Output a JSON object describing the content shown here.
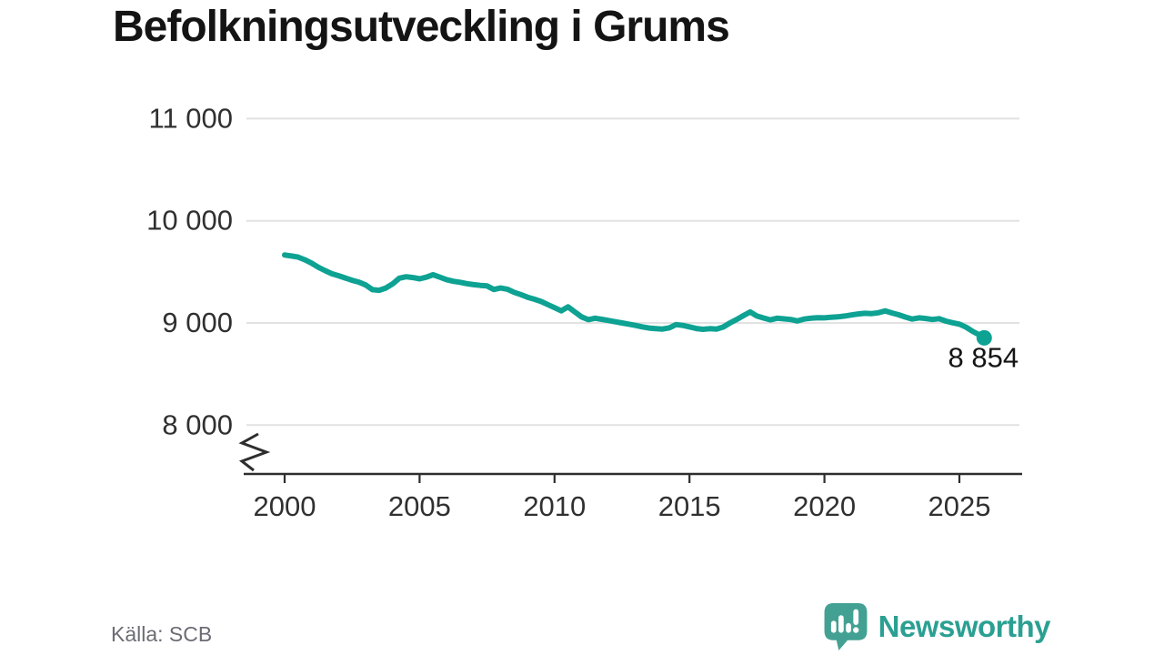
{
  "title": "Befolkningsutveckling i Grums",
  "source": {
    "text": "Källa: SCB"
  },
  "branding": {
    "name": "Newsworthy",
    "icon": "bar-chart-speech-bubble-icon"
  },
  "colors": {
    "line": "#0ea293",
    "grid": "#e2e2e2",
    "axis": "#2e2e2e",
    "tick_text": "#303030",
    "title_text": "#141414",
    "source_text": "#6c6c75",
    "brand": "#2ba092",
    "brand_icon": "#43a193"
  },
  "chart_data": {
    "type": "line",
    "title": "Befolkningsutveckling i Grums",
    "xlabel": "",
    "ylabel": "",
    "grid": "horizontal",
    "legend": "none",
    "y_axis_break": true,
    "xlim": [
      1998.55,
      2027.3
    ],
    "ylim": [
      8000,
      11000
    ],
    "x_ticks": [
      {
        "value": 2000,
        "label": "2000"
      },
      {
        "value": 2005,
        "label": "2005"
      },
      {
        "value": 2010,
        "label": "2010"
      },
      {
        "value": 2015,
        "label": "2015"
      },
      {
        "value": 2020,
        "label": "2020"
      },
      {
        "value": 2025,
        "label": "2025"
      }
    ],
    "y_ticks": [
      {
        "value": 8000,
        "label": "8 000"
      },
      {
        "value": 9000,
        "label": "9 000"
      },
      {
        "value": 10000,
        "label": "10 000"
      },
      {
        "value": 11000,
        "label": "11 000"
      }
    ],
    "end_point": {
      "x": 2025.92,
      "value": 8854,
      "label": "8 854"
    },
    "points": [
      [
        2000,
        9665
      ],
      [
        2000.25,
        9655
      ],
      [
        2000.5,
        9645
      ],
      [
        2000.75,
        9618
      ],
      [
        2001,
        9585
      ],
      [
        2001.25,
        9545
      ],
      [
        2001.5,
        9512
      ],
      [
        2001.75,
        9482
      ],
      [
        2002,
        9462
      ],
      [
        2002.25,
        9440
      ],
      [
        2002.5,
        9418
      ],
      [
        2002.75,
        9400
      ],
      [
        2003,
        9372
      ],
      [
        2003.25,
        9326
      ],
      [
        2003.5,
        9320
      ],
      [
        2003.75,
        9342
      ],
      [
        2004,
        9382
      ],
      [
        2004.25,
        9438
      ],
      [
        2004.5,
        9452
      ],
      [
        2004.75,
        9444
      ],
      [
        2005,
        9432
      ],
      [
        2005.25,
        9448
      ],
      [
        2005.5,
        9472
      ],
      [
        2005.75,
        9448
      ],
      [
        2006,
        9424
      ],
      [
        2006.25,
        9408
      ],
      [
        2006.5,
        9398
      ],
      [
        2006.75,
        9385
      ],
      [
        2007,
        9375
      ],
      [
        2007.25,
        9368
      ],
      [
        2007.5,
        9362
      ],
      [
        2007.75,
        9328
      ],
      [
        2008,
        9342
      ],
      [
        2008.25,
        9330
      ],
      [
        2008.5,
        9300
      ],
      [
        2008.75,
        9278
      ],
      [
        2009,
        9252
      ],
      [
        2009.25,
        9232
      ],
      [
        2009.5,
        9210
      ],
      [
        2009.75,
        9180
      ],
      [
        2010,
        9150
      ],
      [
        2010.25,
        9118
      ],
      [
        2010.5,
        9158
      ],
      [
        2010.75,
        9108
      ],
      [
        2011,
        9060
      ],
      [
        2011.25,
        9032
      ],
      [
        2011.5,
        9046
      ],
      [
        2011.75,
        9036
      ],
      [
        2012,
        9024
      ],
      [
        2012.25,
        9012
      ],
      [
        2012.5,
        9000
      ],
      [
        2012.75,
        8988
      ],
      [
        2013,
        8976
      ],
      [
        2013.25,
        8962
      ],
      [
        2013.5,
        8950
      ],
      [
        2013.75,
        8945
      ],
      [
        2014,
        8940
      ],
      [
        2014.25,
        8952
      ],
      [
        2014.5,
        8984
      ],
      [
        2014.75,
        8976
      ],
      [
        2015,
        8962
      ],
      [
        2015.25,
        8946
      ],
      [
        2015.5,
        8938
      ],
      [
        2015.75,
        8944
      ],
      [
        2016,
        8940
      ],
      [
        2016.25,
        8960
      ],
      [
        2016.5,
        9000
      ],
      [
        2016.75,
        9034
      ],
      [
        2017,
        9072
      ],
      [
        2017.25,
        9108
      ],
      [
        2017.5,
        9068
      ],
      [
        2017.75,
        9048
      ],
      [
        2018,
        9030
      ],
      [
        2018.25,
        9046
      ],
      [
        2018.5,
        9040
      ],
      [
        2018.75,
        9034
      ],
      [
        2019,
        9020
      ],
      [
        2019.25,
        9038
      ],
      [
        2019.5,
        9046
      ],
      [
        2019.75,
        9052
      ],
      [
        2020,
        9050
      ],
      [
        2020.25,
        9056
      ],
      [
        2020.5,
        9060
      ],
      [
        2020.75,
        9068
      ],
      [
        2021,
        9078
      ],
      [
        2021.25,
        9088
      ],
      [
        2021.5,
        9094
      ],
      [
        2021.75,
        9092
      ],
      [
        2022,
        9100
      ],
      [
        2022.25,
        9118
      ],
      [
        2022.5,
        9098
      ],
      [
        2022.75,
        9080
      ],
      [
        2023,
        9058
      ],
      [
        2023.25,
        9038
      ],
      [
        2023.5,
        9050
      ],
      [
        2023.75,
        9044
      ],
      [
        2024,
        9034
      ],
      [
        2024.25,
        9042
      ],
      [
        2024.5,
        9018
      ],
      [
        2024.75,
        9002
      ],
      [
        2025,
        8988
      ],
      [
        2025.25,
        8958
      ],
      [
        2025.5,
        8916
      ],
      [
        2025.75,
        8882
      ],
      [
        2025.92,
        8854
      ]
    ]
  }
}
